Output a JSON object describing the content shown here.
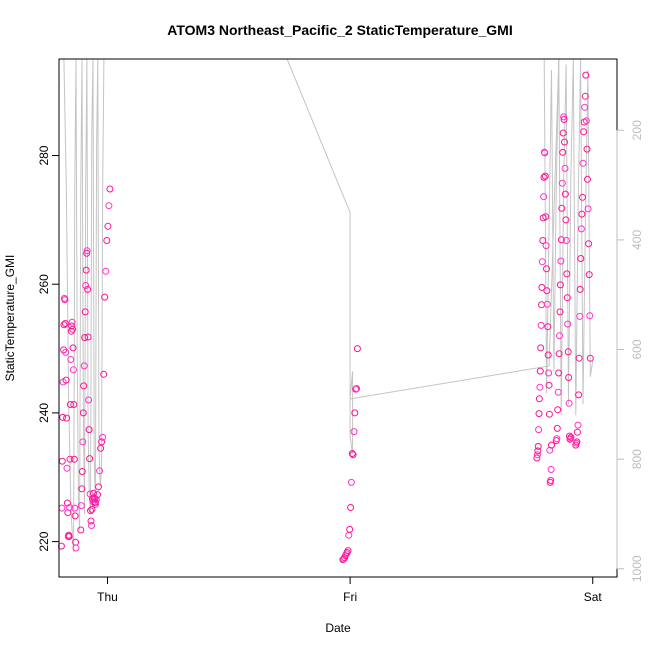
{
  "chart_data": {
    "type": "scatter",
    "title": "ATOM3 Northeast_Pacific_2 StaticTemperature_GMI",
    "xlabel": "Date",
    "ylabel": "StaticTemperature_GMI",
    "x_ticks": [
      {
        "label": "Thu",
        "day": 0
      },
      {
        "label": "Fri",
        "day": 1
      },
      {
        "label": "Sat",
        "day": 2
      }
    ],
    "xlim": [
      -0.2,
      2.1
    ],
    "ylim": [
      214.5,
      295
    ],
    "y_ticks": [
      220,
      240,
      260,
      280
    ],
    "y2_ticks": [
      200,
      400,
      600,
      800,
      1000
    ],
    "y2lim": [
      1015,
      70
    ],
    "y2_color": "#bdbdbd",
    "point_color": "#ff1493",
    "point_color_alt": "#ff33cc",
    "profile_color": "#c4c4c4",
    "series": [
      {
        "day": -0.16,
        "values": [
          219.3,
          225.2,
          232.5,
          239.3,
          244.8,
          249.8,
          253.7,
          257.8,
          257.6,
          253.9,
          249.4,
          245.1,
          239.2,
          231.4,
          226.0,
          224.5,
          220.8,
          221.0,
          220.8,
          225.3,
          232.8,
          241.3,
          248.3,
          252.7,
          253.5,
          254.1,
          253.0,
          250.1,
          246.7,
          241.3,
          232.8,
          225.2,
          224.0,
          219.9,
          219.0
        ]
      },
      {
        "day": -0.08,
        "values": [
          221.8,
          225.6,
          228.2,
          230.9,
          235.5,
          240.0,
          244.2,
          247.3,
          251.7,
          255.7,
          259.8,
          262.2,
          264.8,
          265.2,
          259.2,
          251.8,
          242.0,
          237.4,
          232.9,
          227.4,
          224.8,
          223.2,
          222.5,
          225.0,
          226.6,
          226.2,
          227.5,
          226.8,
          226.1,
          226.7,
          225.8
        ]
      },
      {
        "day": -0.02,
        "values": [
          226.1,
          226.5,
          227.3,
          228.5,
          231.0,
          234.5,
          235.5,
          236.2,
          246.0,
          258.0,
          262.0,
          266.8,
          269.0,
          272.2,
          274.8
        ]
      },
      {
        "day": 1.0,
        "values": [
          217.2,
          217.3,
          217.5,
          217.8,
          218.1,
          218.3,
          218.6,
          221.0,
          221.9,
          225.3,
          229.2,
          233.7,
          233.5,
          237.1,
          240.0,
          243.7,
          243.8,
          250.0
        ]
      },
      {
        "day": 1.8,
        "values": [
          233.0,
          233.5,
          234.1,
          234.8,
          237.4,
          239.9,
          242.2,
          244.0,
          246.5,
          250.1,
          253.6,
          256.8,
          259.5,
          263.5,
          266.8,
          270.3,
          273.6,
          276.6,
          280.5,
          280.4,
          276.8,
          270.5,
          266.0,
          262.4,
          259.0,
          256.9,
          253.4,
          249.0,
          246.2,
          244.3,
          239.8,
          234.2,
          229.2,
          229.5,
          231.2,
          235.0
        ]
      },
      {
        "day": 1.88,
        "values": [
          235.7,
          236.0,
          237.6,
          240.5,
          243.2,
          246.2,
          249.2,
          252.0,
          255.7,
          259.9,
          263.6,
          266.9,
          271.8,
          275.7,
          280.5,
          283.5,
          286.0,
          285.6,
          282.1,
          278.0,
          274.0,
          270.0,
          266.8,
          261.6,
          257.9,
          253.8,
          249.5,
          245.5,
          241.5,
          236.4,
          235.9,
          236.0,
          236.2
        ]
      },
      {
        "day": 1.96,
        "values": [
          235.0,
          235.3,
          235.5,
          237.0,
          238.1,
          242.8,
          248.5,
          255.0,
          259.2,
          264.0,
          268.6,
          270.9,
          273.5,
          278.8,
          283.7,
          285.2,
          287.5,
          289.2,
          292.5,
          285.4,
          281.0,
          276.3,
          271.7,
          266.3,
          261.5,
          255.1,
          248.5
        ]
      }
    ],
    "profiles": [
      {
        "x": [
          -0.18,
          -0.17,
          -0.16,
          -0.15,
          -0.14,
          -0.135,
          -0.13,
          -0.125,
          -0.12,
          -0.115,
          -0.11,
          -0.105,
          -0.1,
          -0.095,
          -0.09,
          -0.085,
          -0.08,
          -0.075,
          -0.07,
          -0.065,
          -0.06,
          -0.055,
          -0.05,
          -0.045,
          -0.04,
          -0.035,
          -0.03,
          -0.025,
          -0.02,
          -0.015,
          -0.01
        ],
        "y2": [
          70,
          300,
          700,
          900,
          970,
          300,
          70,
          600,
          870,
          930,
          300,
          70,
          700,
          900,
          300,
          70,
          750,
          860,
          900,
          200,
          70,
          800,
          880,
          230,
          70,
          780,
          850,
          820,
          300,
          70,
          70
        ]
      },
      {
        "x": [
          0.74,
          1.0,
          1.0,
          1.01,
          1.01,
          1.0,
          1.82,
          1.86
        ],
        "y2": [
          70,
          350,
          760,
          790,
          640,
          690,
          630,
          70
        ]
      },
      {
        "x": [
          1.8,
          1.81,
          1.82,
          1.83,
          1.84,
          1.85,
          1.86,
          1.87,
          1.88,
          1.89,
          1.9,
          1.91,
          1.92,
          1.93,
          1.94,
          1.95,
          1.96,
          1.97,
          1.98,
          1.99,
          2.0
        ],
        "y2": [
          70,
          680,
          370,
          90,
          640,
          300,
          70,
          720,
          300,
          80,
          700,
          280,
          70,
          720,
          330,
          70,
          700,
          350,
          90,
          650,
          620
        ]
      }
    ]
  }
}
